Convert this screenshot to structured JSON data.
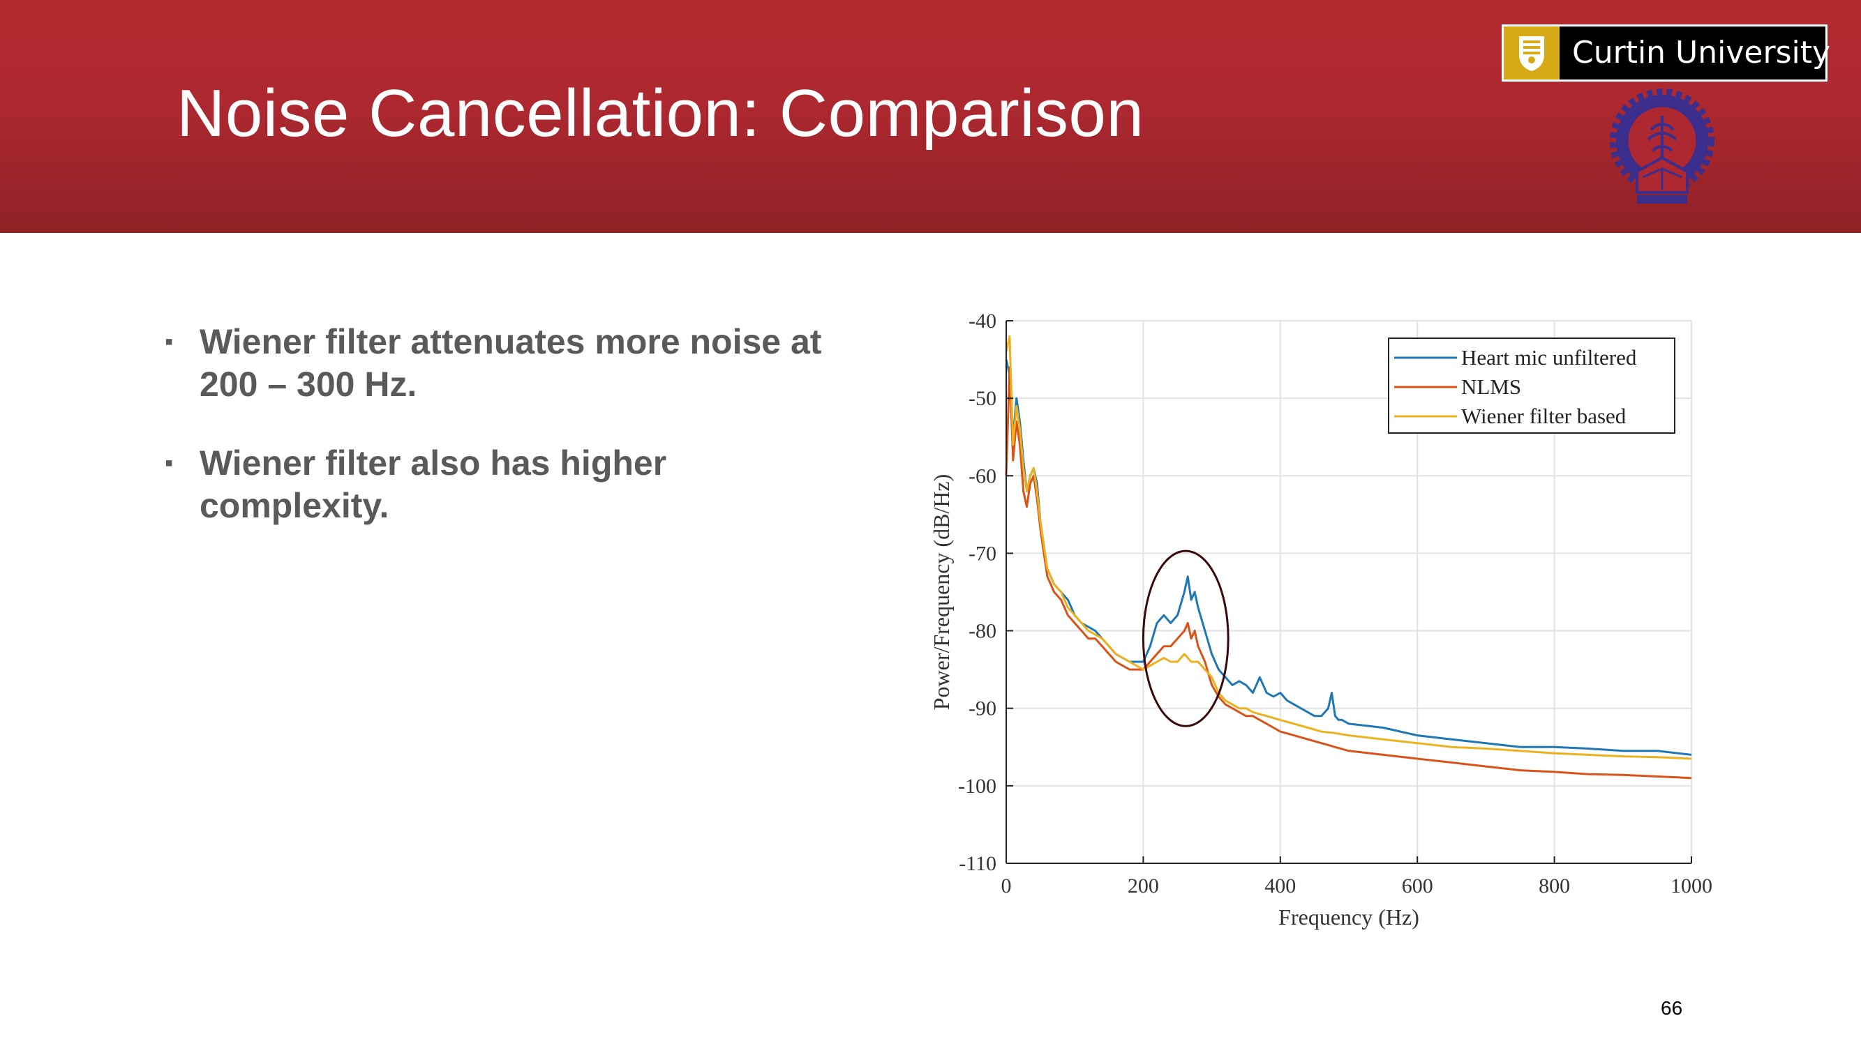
{
  "slide": {
    "title": "Noise Cancellation: Comparison",
    "page_number": "66",
    "header_color": "#ad2830",
    "logo": {
      "text": "Curtin University",
      "shield_color": "#d6a916",
      "icon": "curtin-shield-icon"
    },
    "seal_icon": "institute-seal-icon"
  },
  "bullets": [
    {
      "text": "Wiener filter attenuates more noise at 200 – 300 Hz."
    },
    {
      "text": "Wiener filter also has higher complexity."
    }
  ],
  "bullet_marker": "▪",
  "chart_data": {
    "type": "line",
    "xlabel": "Frequency (Hz)",
    "ylabel": "Power/Frequency (dB/Hz)",
    "xlim": [
      0,
      1000
    ],
    "ylim": [
      -110,
      -40
    ],
    "xticks": [
      0,
      200,
      400,
      600,
      800,
      1000
    ],
    "yticks": [
      -40,
      -50,
      -60,
      -70,
      -80,
      -90,
      -100,
      -110
    ],
    "grid": true,
    "legend_position": "top-right",
    "annotation": {
      "type": "ellipse",
      "center_x": 262,
      "center_y": -81,
      "radius_x": 62,
      "radius_y": 11.3,
      "color": "#3a0a0a"
    },
    "series": [
      {
        "name": "Heart mic unfiltered",
        "color": "#1f77b4",
        "x": [
          0,
          5,
          10,
          15,
          20,
          25,
          30,
          35,
          40,
          45,
          50,
          60,
          70,
          80,
          90,
          100,
          110,
          120,
          130,
          140,
          150,
          160,
          170,
          180,
          190,
          200,
          210,
          220,
          230,
          240,
          250,
          260,
          265,
          270,
          275,
          280,
          290,
          300,
          310,
          320,
          330,
          340,
          350,
          360,
          370,
          380,
          390,
          400,
          410,
          420,
          430,
          440,
          450,
          460,
          470,
          475,
          480,
          485,
          490,
          500,
          550,
          600,
          650,
          700,
          750,
          800,
          850,
          900,
          950,
          1000
        ],
        "y": [
          -45,
          -47,
          -55,
          -50,
          -53,
          -58,
          -62,
          -60,
          -59,
          -61,
          -66,
          -72,
          -74,
          -75,
          -76,
          -78,
          -79,
          -79.5,
          -80,
          -81,
          -82,
          -83,
          -83.5,
          -84,
          -84,
          -84,
          -82,
          -79,
          -78,
          -79,
          -78,
          -75,
          -73,
          -76,
          -75,
          -77,
          -80,
          -83,
          -85,
          -86,
          -87,
          -86.5,
          -87,
          -88,
          -86,
          -88,
          -88.5,
          -88,
          -89,
          -89.5,
          -90,
          -90.5,
          -91,
          -91,
          -90,
          -88,
          -91,
          -91.5,
          -91.5,
          -92,
          -92.5,
          -93.5,
          -94,
          -94.5,
          -95,
          -95,
          -95.2,
          -95.5,
          -95.5,
          -96
        ]
      },
      {
        "name": "NLMS",
        "color": "#d95319",
        "x": [
          0,
          5,
          10,
          15,
          20,
          25,
          30,
          35,
          40,
          45,
          50,
          60,
          70,
          80,
          90,
          100,
          110,
          120,
          130,
          140,
          150,
          160,
          170,
          180,
          190,
          200,
          210,
          220,
          230,
          240,
          250,
          260,
          265,
          270,
          275,
          280,
          290,
          300,
          310,
          320,
          330,
          340,
          350,
          360,
          370,
          380,
          390,
          400,
          420,
          440,
          460,
          480,
          500,
          550,
          600,
          650,
          700,
          750,
          800,
          850,
          900,
          950,
          1000
        ],
        "y": [
          -60,
          -46,
          -58,
          -53,
          -56,
          -62,
          -64,
          -61,
          -60,
          -63,
          -67,
          -73,
          -75,
          -76,
          -78,
          -79,
          -80,
          -81,
          -81,
          -82,
          -83,
          -84,
          -84.5,
          -85,
          -85,
          -85,
          -84,
          -83,
          -82,
          -82,
          -81,
          -80,
          -79,
          -81,
          -80,
          -82,
          -84,
          -87,
          -88.5,
          -89.5,
          -90,
          -90.5,
          -91,
          -91,
          -91.5,
          -92,
          -92.5,
          -93,
          -93.5,
          -94,
          -94.5,
          -95,
          -95.5,
          -96,
          -96.5,
          -97,
          -97.5,
          -98,
          -98.2,
          -98.5,
          -98.6,
          -98.8,
          -99
        ]
      },
      {
        "name": "Wiener filter based",
        "color": "#edb120",
        "x": [
          0,
          5,
          10,
          15,
          20,
          25,
          30,
          35,
          40,
          45,
          50,
          60,
          70,
          80,
          90,
          100,
          110,
          120,
          130,
          140,
          150,
          160,
          170,
          180,
          190,
          200,
          210,
          220,
          230,
          240,
          250,
          260,
          270,
          280,
          290,
          300,
          310,
          320,
          330,
          340,
          350,
          360,
          380,
          400,
          420,
          440,
          460,
          480,
          500,
          550,
          600,
          650,
          700,
          750,
          800,
          850,
          900,
          950,
          1000
        ],
        "y": [
          -44,
          -42,
          -56,
          -51,
          -54,
          -59,
          -62,
          -60,
          -59,
          -62,
          -66,
          -72,
          -74,
          -75,
          -77,
          -78,
          -79,
          -80,
          -80.5,
          -81,
          -82,
          -83,
          -83.5,
          -84,
          -84.5,
          -85,
          -84.5,
          -84,
          -83.5,
          -84,
          -84,
          -83,
          -84,
          -84,
          -85,
          -86,
          -88,
          -89,
          -89.5,
          -90,
          -90,
          -90.5,
          -91,
          -91.5,
          -92,
          -92.5,
          -93,
          -93.2,
          -93.5,
          -94,
          -94.5,
          -95,
          -95.2,
          -95.5,
          -95.8,
          -96,
          -96.2,
          -96.3,
          -96.5
        ]
      }
    ]
  }
}
